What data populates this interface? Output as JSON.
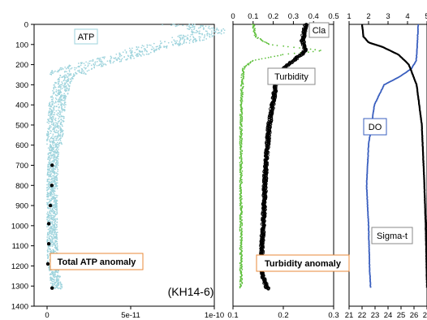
{
  "cruise_label": "(KH14-6)",
  "chart_data": [
    {
      "type": "scatter",
      "title": "",
      "ylabel": "",
      "ylim": [
        1400,
        0
      ],
      "yticks": [
        0,
        100,
        200,
        300,
        400,
        500,
        600,
        700,
        800,
        900,
        1000,
        1100,
        1200,
        1300,
        1400
      ],
      "xlim": [
        0,
        1e-10
      ],
      "xticks": [
        "0",
        "5e-11",
        "1e-10"
      ],
      "series_label": "ATP",
      "anomaly_label": "Total ATP anomaly",
      "color_series": "#9dd3dc",
      "color_marker": "#000000",
      "color_box": "#e98a3a",
      "profile": [
        {
          "depth": 0,
          "x": 8e-11
        },
        {
          "depth": 30,
          "x": 9.8e-11
        },
        {
          "depth": 80,
          "x": 8.2e-11
        },
        {
          "depth": 120,
          "x": 6e-11
        },
        {
          "depth": 150,
          "x": 5e-11
        },
        {
          "depth": 190,
          "x": 3e-11
        },
        {
          "depth": 230,
          "x": 1.4e-11
        },
        {
          "depth": 300,
          "x": 9e-12
        },
        {
          "depth": 400,
          "x": 6e-12
        },
        {
          "depth": 500,
          "x": 5e-12
        },
        {
          "depth": 600,
          "x": 4e-12
        },
        {
          "depth": 800,
          "x": 3e-12
        },
        {
          "depth": 1000,
          "x": 3e-12
        },
        {
          "depth": 1200,
          "x": 3.5e-12
        },
        {
          "depth": 1310,
          "x": 6e-12
        }
      ],
      "markers": [
        {
          "depth": 700,
          "x": 3e-12
        },
        {
          "depth": 800,
          "x": 2.8e-12
        },
        {
          "depth": 900,
          "x": 2e-12
        },
        {
          "depth": 990,
          "x": 1e-12
        },
        {
          "depth": 1090,
          "x": 1e-12
        },
        {
          "depth": 1190,
          "x": 5e-13
        },
        {
          "depth": 1310,
          "x": 3e-12
        }
      ]
    },
    {
      "type": "line",
      "xlim_bottom": [
        0.1,
        0.3
      ],
      "xticks_bottom": [
        "0.1",
        "0.2",
        "0.3"
      ],
      "xlim_top": [
        0,
        0.5
      ],
      "xticks_top": [
        "0",
        "0.1",
        "0.2",
        "0.3",
        "0.4",
        "0.5"
      ],
      "cla_label": "Cla",
      "turbidity_label": "Turbidity",
      "anomaly_label": "Turbidity anomaly",
      "color_cla": "#5fc03c",
      "color_turbidity": "#000000",
      "color_box": "#e98a3a",
      "cla_profile": [
        {
          "depth": 0,
          "x": 0.1
        },
        {
          "depth": 60,
          "x": 0.11
        },
        {
          "depth": 100,
          "x": 0.18
        },
        {
          "depth": 130,
          "x": 0.45
        },
        {
          "depth": 150,
          "x": 0.25
        },
        {
          "depth": 180,
          "x": 0.1
        },
        {
          "depth": 220,
          "x": 0.05
        },
        {
          "depth": 400,
          "x": 0.04
        },
        {
          "depth": 1310,
          "x": 0.04
        }
      ],
      "turbidity_profile": [
        {
          "depth": 0,
          "x": 0.245
        },
        {
          "depth": 80,
          "x": 0.238
        },
        {
          "depth": 130,
          "x": 0.245
        },
        {
          "depth": 170,
          "x": 0.225
        },
        {
          "depth": 220,
          "x": 0.2
        },
        {
          "depth": 300,
          "x": 0.185
        },
        {
          "depth": 500,
          "x": 0.172
        },
        {
          "depth": 700,
          "x": 0.165
        },
        {
          "depth": 900,
          "x": 0.162
        },
        {
          "depth": 1100,
          "x": 0.158
        },
        {
          "depth": 1210,
          "x": 0.156
        },
        {
          "depth": 1260,
          "x": 0.16
        },
        {
          "depth": 1310,
          "x": 0.168
        }
      ]
    },
    {
      "type": "line",
      "xlim_bottom": [
        21,
        27
      ],
      "xticks_bottom": [
        "21",
        "22",
        "23",
        "24",
        "25",
        "26",
        "27"
      ],
      "xlim_top": [
        1,
        5
      ],
      "xticks_top": [
        "1",
        "2",
        "3",
        "4",
        "5"
      ],
      "do_label": "DO",
      "sigma_label": "Sigma-t",
      "color_do": "#3a5fbf",
      "color_sigma": "#000000",
      "do_profile": [
        {
          "depth": 0,
          "x": 4.55
        },
        {
          "depth": 100,
          "x": 4.5
        },
        {
          "depth": 180,
          "x": 4.45
        },
        {
          "depth": 220,
          "x": 4.2
        },
        {
          "depth": 260,
          "x": 3.6
        },
        {
          "depth": 300,
          "x": 2.8
        },
        {
          "depth": 400,
          "x": 2.3
        },
        {
          "depth": 600,
          "x": 2.0
        },
        {
          "depth": 800,
          "x": 1.9
        },
        {
          "depth": 1000,
          "x": 2.0
        },
        {
          "depth": 1200,
          "x": 2.05
        },
        {
          "depth": 1310,
          "x": 2.1
        }
      ],
      "sigma_profile": [
        {
          "depth": 0,
          "x": 22.0
        },
        {
          "depth": 60,
          "x": 22.1
        },
        {
          "depth": 90,
          "x": 22.5
        },
        {
          "depth": 110,
          "x": 23.5
        },
        {
          "depth": 150,
          "x": 24.8
        },
        {
          "depth": 200,
          "x": 25.6
        },
        {
          "depth": 300,
          "x": 26.2
        },
        {
          "depth": 500,
          "x": 26.6
        },
        {
          "depth": 800,
          "x": 26.8
        },
        {
          "depth": 1000,
          "x": 26.9
        },
        {
          "depth": 1310,
          "x": 27.0
        }
      ]
    }
  ]
}
